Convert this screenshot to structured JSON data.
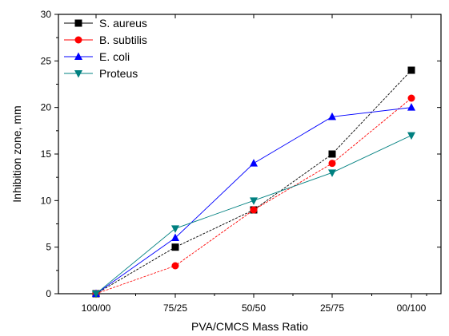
{
  "chart_data": {
    "type": "line",
    "title": "",
    "xlabel": "PVA/CMCS Mass Ratio",
    "ylabel": "Inhibition zone, mm",
    "categories": [
      "100/00",
      "75/25",
      "50/50",
      "25/75",
      "00/100"
    ],
    "ylim": [
      0,
      30
    ],
    "yticks": [
      0,
      5,
      10,
      15,
      20,
      25,
      30
    ],
    "grid": false,
    "legend_position": "top-left",
    "series": [
      {
        "name": "S. aureus",
        "marker": "square",
        "color": "#000000",
        "values": [
          0,
          5,
          9,
          15,
          24
        ]
      },
      {
        "name": "B. subtilis",
        "marker": "circle",
        "color": "#ff0000",
        "values": [
          0,
          3,
          9,
          14,
          21
        ]
      },
      {
        "name": "E. coli",
        "marker": "triangle-up",
        "color": "#0000ff",
        "values": [
          0,
          6,
          14,
          19,
          20
        ]
      },
      {
        "name": "Proteus",
        "marker": "triangle-down",
        "color": "#008080",
        "values": [
          0,
          7,
          10,
          13,
          17
        ]
      }
    ]
  }
}
